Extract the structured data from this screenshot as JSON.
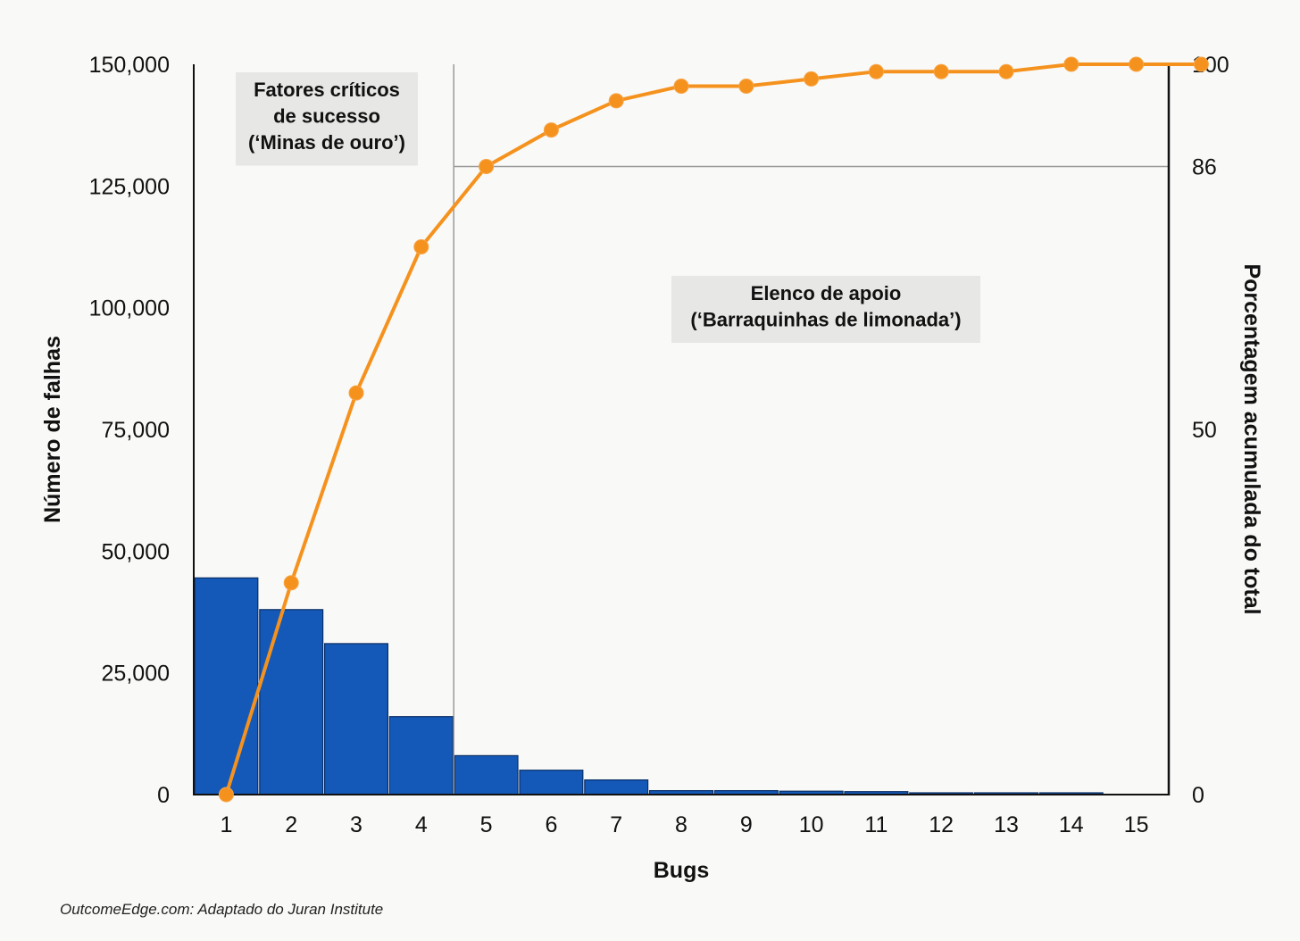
{
  "chart_data": {
    "type": "bar",
    "xlabel": "Bugs",
    "ylabel": "Número de falhas",
    "y2label": "Porcentagem acumulada do total",
    "categories": [
      "1",
      "2",
      "3",
      "4",
      "5",
      "6",
      "7",
      "8",
      "9",
      "10",
      "11",
      "12",
      "13",
      "14",
      "15"
    ],
    "series": [
      {
        "kind": "bar",
        "values": [
          44500,
          38000,
          31000,
          16000,
          8000,
          5000,
          3000,
          800,
          800,
          700,
          600,
          300,
          200,
          100,
          0
        ],
        "color": "#1458b8"
      },
      {
        "kind": "line",
        "axis": "right",
        "x": [
          0.5,
          1.5,
          2.5,
          3.5,
          4.5,
          5.5,
          6.5,
          7.5,
          8.5,
          9.5,
          10.5,
          11.5,
          12.5,
          13.5,
          14.5,
          15.5
        ],
        "values": [
          0,
          29,
          55,
          75,
          86,
          91,
          95,
          97,
          97,
          98,
          99,
          99,
          99,
          100,
          100,
          100
        ],
        "color": "#f5921e"
      }
    ],
    "ylim": [
      0,
      150000
    ],
    "yticks": [
      "0",
      "25,000",
      "50,000",
      "75,000",
      "100,000",
      "125,000",
      "150,000"
    ],
    "ytick_values": [
      0,
      25000,
      50000,
      75000,
      100000,
      125000,
      150000
    ],
    "y2lim": [
      0,
      100
    ],
    "y2ticks": [
      "0",
      "50",
      "86",
      "100"
    ],
    "y2tick_values": [
      0,
      50,
      86,
      100
    ],
    "reference": {
      "divider_after_category": 4,
      "y2_value": 86
    },
    "annotations": {
      "left": [
        "Fatores críticos",
        "de sucesso",
        "(‘Minas de ouro’)"
      ],
      "right": [
        "Elenco de apoio",
        "(‘Barraquinhas de limonada’)"
      ]
    },
    "grid": false
  },
  "source": "OutcomeEdge.com: Adaptado do Juran Institute"
}
